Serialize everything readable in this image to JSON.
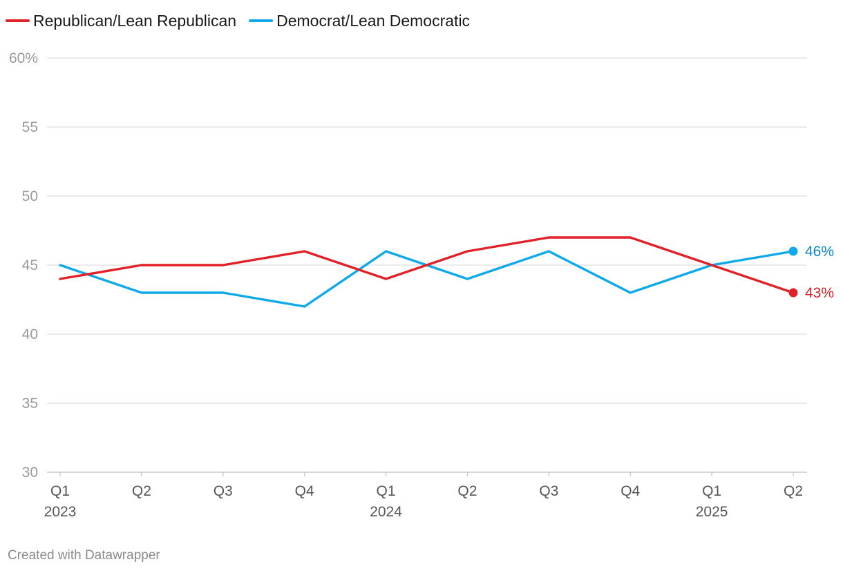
{
  "chart_data": {
    "type": "line",
    "categories": [
      "Q1",
      "Q2",
      "Q3",
      "Q4",
      "Q1",
      "Q2",
      "Q3",
      "Q4",
      "Q1",
      "Q2"
    ],
    "year_labels": [
      "2023",
      "",
      "",
      "",
      "2024",
      "",
      "",
      "",
      "2025",
      ""
    ],
    "series": [
      {
        "name": "Republican/Lean Republican",
        "color": "#e02128",
        "values": [
          44,
          45,
          45,
          46,
          44,
          46,
          47,
          47,
          45,
          43
        ],
        "end_label": "43%"
      },
      {
        "name": "Democrat/Lean Democratic",
        "color": "#0fa8e8",
        "values": [
          45,
          43,
          43,
          42,
          46,
          44,
          46,
          43,
          45,
          46
        ],
        "end_label": "46%"
      }
    ],
    "ylim": [
      30,
      60
    ],
    "yticks": [
      30,
      35,
      40,
      45,
      50,
      55,
      60
    ],
    "ytick_labels": [
      "30",
      "35",
      "40",
      "45",
      "50",
      "55",
      "60%"
    ],
    "end_label_colors": [
      "#d81e28",
      "#0a85c7"
    ],
    "legend_position": "top-left",
    "title": "",
    "xlabel": "",
    "ylabel": ""
  },
  "footer": {
    "credit": "Created with Datawrapper"
  }
}
